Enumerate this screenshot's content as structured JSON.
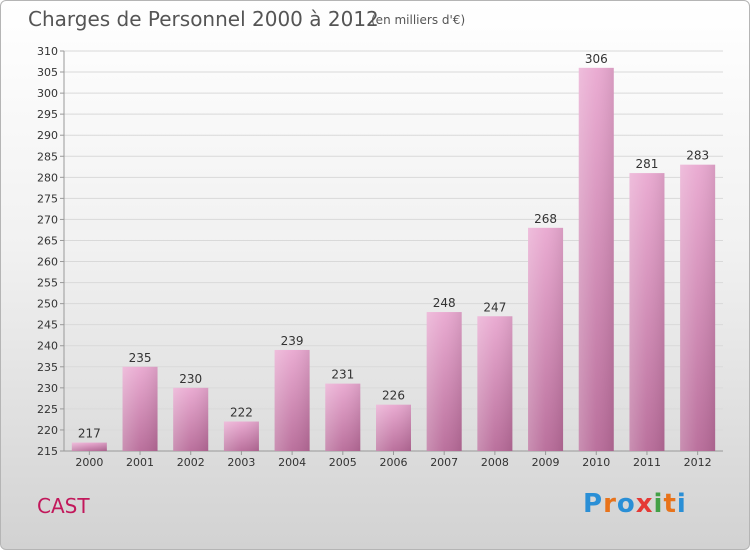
{
  "header": {
    "title": "Charges de Personnel 2000 à 2012",
    "unit": "(en milliers d'€)"
  },
  "footer": {
    "commune": "CAST",
    "logo": [
      "P",
      "r",
      "o",
      "x",
      "i",
      "t",
      "i"
    ],
    "logo_colors": [
      "#2a8fd6",
      "#e8731a",
      "#2a8fd6",
      "#e53935",
      "#43a047",
      "#e8731a",
      "#2a8fd6"
    ]
  },
  "colors": {
    "bar_top": "#e9a8d0",
    "bar_bottom": "#b76a98",
    "grid": "#d9d9d9",
    "axis": "#999999"
  },
  "chart_data": {
    "type": "bar",
    "title": "Charges de Personnel 2000 à 2012",
    "subtitle": "(en milliers d'€)",
    "categories": [
      "2000",
      "2001",
      "2002",
      "2003",
      "2004",
      "2005",
      "2006",
      "2007",
      "2008",
      "2009",
      "2010",
      "2011",
      "2012"
    ],
    "values": [
      217,
      235,
      230,
      222,
      239,
      231,
      226,
      248,
      247,
      268,
      306,
      281,
      283
    ],
    "ylim": [
      215,
      310
    ],
    "ytick_step": 5,
    "grid": true,
    "xlabel": "",
    "ylabel": ""
  }
}
